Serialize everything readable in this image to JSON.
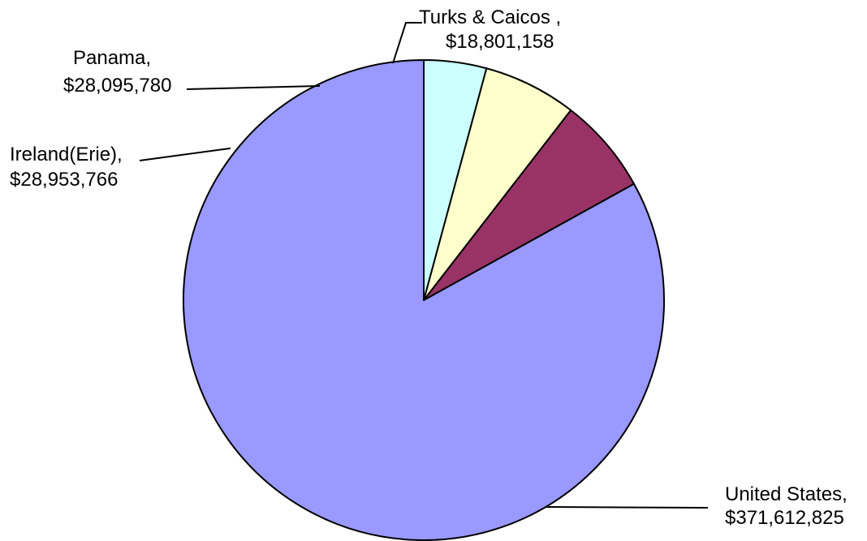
{
  "chart_data": {
    "type": "pie",
    "title": "",
    "start_angle_deg": 0,
    "direction": "counterclockwise",
    "legend": "none",
    "slices": [
      {
        "name": "United States",
        "label": "United States,",
        "value_label": "$371,612,825",
        "value": 371612825,
        "color": "#9999ff"
      },
      {
        "name": "Ireland(Erie)",
        "label": "Ireland(Erie),",
        "value_label": "$28,953,766",
        "value": 28953766,
        "color": "#993366"
      },
      {
        "name": "Panama",
        "label": "Panama,",
        "value_label": "$28,095,780",
        "value": 28095780,
        "color": "#ffffcc"
      },
      {
        "name": "Turks & Caicos",
        "label": "Turks & Caicos ,",
        "value_label": "$18,801,158",
        "value": 18801158,
        "color": "#ccffff"
      }
    ]
  }
}
